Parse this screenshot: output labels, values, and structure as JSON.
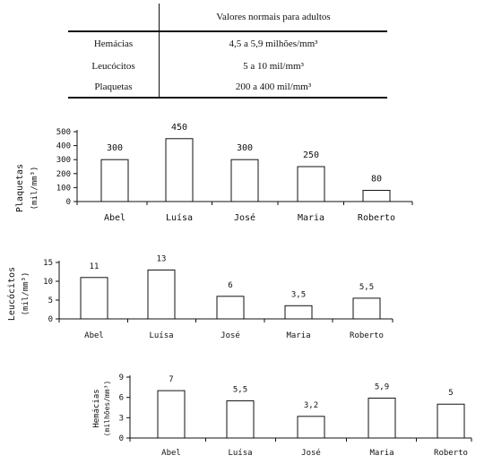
{
  "reference_table": {
    "header": "Valores normais para adultos",
    "rows": [
      {
        "label": "Hemácias",
        "value": "4,5 a 5,9 milhões/mm³"
      },
      {
        "label": "Leucócitos",
        "value": "5 a 10 mil/mm³"
      },
      {
        "label": "Plaquetas",
        "value": "200 a 400 mil/mm³"
      }
    ]
  },
  "chart_data": [
    {
      "type": "bar",
      "ylabel": "Plaquetas",
      "ylabel_unit": "(mil/mm³)",
      "categories": [
        "Abel",
        "Luísa",
        "José",
        "Maria",
        "Roberto"
      ],
      "values": [
        300,
        450,
        300,
        250,
        80
      ],
      "value_labels": [
        "300",
        "450",
        "300",
        "250",
        "80"
      ],
      "yticks": [
        "0",
        "100",
        "200",
        "300",
        "400",
        "500"
      ],
      "ylim": [
        0,
        500
      ],
      "grid": false,
      "legend": "none"
    },
    {
      "type": "bar",
      "ylabel": "Leucócitos",
      "ylabel_unit": "(mil/mm³)",
      "categories": [
        "Abel",
        "Luísa",
        "José",
        "Maria",
        "Roberto"
      ],
      "values": [
        11,
        13,
        6,
        3.5,
        5.5
      ],
      "value_labels": [
        "11",
        "13",
        "6",
        "3,5",
        "5,5"
      ],
      "yticks": [
        "0",
        "5",
        "10",
        "15"
      ],
      "ylim": [
        0,
        15
      ],
      "grid": false,
      "legend": "none"
    },
    {
      "type": "bar",
      "ylabel": "Hemácias",
      "ylabel_unit": "(milhões/mm³)",
      "categories": [
        "Abel",
        "Luísa",
        "José",
        "Maria",
        "Roberto"
      ],
      "values": [
        7,
        5.5,
        3.2,
        5.9,
        5
      ],
      "value_labels": [
        "7",
        "5,5",
        "3,2",
        "5,9",
        "5"
      ],
      "yticks": [
        "0",
        "3",
        "6",
        "9"
      ],
      "ylim": [
        0,
        9
      ],
      "grid": false,
      "legend": "none"
    }
  ]
}
